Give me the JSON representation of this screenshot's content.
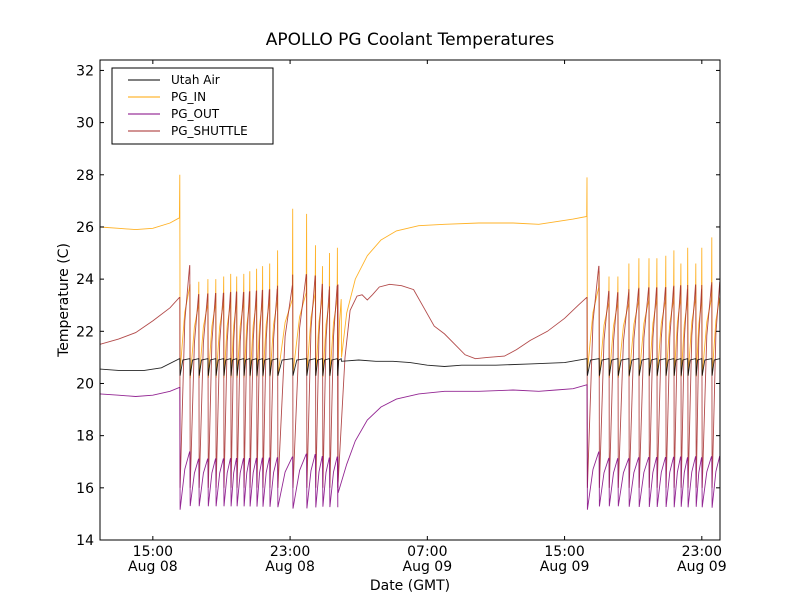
{
  "chart_data": {
    "type": "line",
    "title": "APOLLO PG Coolant Temperatures",
    "xlabel": "Date (GMT)",
    "ylabel": "Temperature (C)",
    "x_units": "hours since Aug 08 00:00 GMT",
    "xlim": [
      11.92,
      48.06
    ],
    "ylim": [
      14,
      32.4
    ],
    "grid": false,
    "legend_position": "top-left",
    "xticks": [
      {
        "value": 15,
        "line1": "15:00",
        "line2": "Aug 08"
      },
      {
        "value": 23,
        "line1": "23:00",
        "line2": "Aug 08"
      },
      {
        "value": 31,
        "line1": "07:00",
        "line2": "Aug 09"
      },
      {
        "value": 39,
        "line1": "15:00",
        "line2": "Aug 09"
      },
      {
        "value": 47,
        "line1": "23:00",
        "line2": "Aug 09"
      }
    ],
    "yticks": [
      14,
      16,
      18,
      20,
      22,
      24,
      26,
      28,
      30,
      32
    ],
    "cycles": {
      "note": "compressor cycling events (spike time in hours, PG_IN spike peak in C)",
      "region1": [
        [
          16.57,
          28.0
        ],
        [
          17.16,
          23.8
        ],
        [
          17.68,
          23.9
        ],
        [
          18.21,
          24.0
        ],
        [
          18.67,
          24.0
        ],
        [
          19.13,
          24.1
        ],
        [
          19.54,
          24.2
        ],
        [
          19.89,
          24.1
        ],
        [
          20.3,
          24.2
        ],
        [
          20.65,
          24.3
        ],
        [
          21.05,
          24.4
        ],
        [
          21.4,
          24.5
        ],
        [
          21.81,
          24.6
        ],
        [
          22.27,
          25.1
        ],
        [
          23.15,
          26.7
        ],
        [
          23.96,
          26.5
        ],
        [
          24.48,
          25.3
        ],
        [
          24.89,
          24.5
        ],
        [
          25.3,
          25.0
        ],
        [
          25.76,
          25.2
        ]
      ],
      "region2": [
        [
          40.31,
          27.9
        ],
        [
          41.01,
          24.3
        ],
        [
          41.59,
          24.1
        ],
        [
          42.11,
          24.1
        ],
        [
          42.75,
          24.6
        ],
        [
          43.33,
          24.8
        ],
        [
          43.92,
          24.8
        ],
        [
          44.38,
          24.8
        ],
        [
          44.9,
          24.9
        ],
        [
          45.37,
          25.1
        ],
        [
          45.78,
          24.6
        ],
        [
          46.18,
          25.2
        ],
        [
          46.65,
          24.6
        ],
        [
          47.0,
          25.2
        ],
        [
          47.58,
          25.6
        ]
      ]
    },
    "series": [
      {
        "name": "Utah Air",
        "color": "#000000",
        "baseline": [
          [
            11.92,
            20.55
          ],
          [
            13.0,
            20.5
          ],
          [
            14.5,
            20.5
          ],
          [
            15.5,
            20.6
          ],
          [
            16.55,
            20.95
          ]
        ],
        "cycle_low": 20.3,
        "cycle_high": 20.95,
        "between": [
          [
            26.0,
            20.85
          ],
          [
            27.0,
            20.9
          ],
          [
            28.0,
            20.85
          ],
          [
            29.0,
            20.85
          ],
          [
            30.0,
            20.8
          ],
          [
            31.0,
            20.7
          ],
          [
            32.0,
            20.65
          ],
          [
            33.0,
            20.7
          ],
          [
            35.0,
            20.7
          ],
          [
            37.0,
            20.75
          ],
          [
            39.0,
            20.8
          ],
          [
            40.29,
            20.95
          ]
        ],
        "tail": 20.9
      },
      {
        "name": "PG_IN",
        "color": "#ffa500",
        "baseline": [
          [
            11.92,
            26.0
          ],
          [
            13.0,
            25.95
          ],
          [
            14.0,
            25.9
          ],
          [
            15.0,
            25.95
          ],
          [
            16.0,
            26.15
          ],
          [
            16.55,
            26.35
          ]
        ],
        "cycle_low": 20.2,
        "cycle_high": 23.0,
        "between": [
          [
            26.0,
            21.0
          ],
          [
            26.3,
            22.7
          ],
          [
            26.8,
            24.0
          ],
          [
            27.5,
            24.9
          ],
          [
            28.3,
            25.5
          ],
          [
            29.2,
            25.85
          ],
          [
            30.5,
            26.05
          ],
          [
            32.0,
            26.1
          ],
          [
            34.0,
            26.15
          ],
          [
            36.0,
            26.15
          ],
          [
            37.5,
            26.1
          ],
          [
            38.5,
            26.2
          ],
          [
            39.5,
            26.3
          ],
          [
            40.29,
            26.4
          ]
        ],
        "tail": 22.5
      },
      {
        "name": "PG_OUT",
        "color": "#800080",
        "baseline": [
          [
            11.92,
            19.6
          ],
          [
            13.0,
            19.55
          ],
          [
            14.0,
            19.5
          ],
          [
            15.0,
            19.55
          ],
          [
            16.0,
            19.7
          ],
          [
            16.55,
            19.85
          ]
        ],
        "cycle_low": 15.3,
        "cycle_high": 17.1,
        "between": [
          [
            25.8,
            15.8
          ],
          [
            26.3,
            16.9
          ],
          [
            26.8,
            17.8
          ],
          [
            27.5,
            18.6
          ],
          [
            28.3,
            19.1
          ],
          [
            29.2,
            19.4
          ],
          [
            30.5,
            19.6
          ],
          [
            32.0,
            19.7
          ],
          [
            34.0,
            19.7
          ],
          [
            36.0,
            19.75
          ],
          [
            37.5,
            19.7
          ],
          [
            38.5,
            19.75
          ],
          [
            39.5,
            19.8
          ],
          [
            40.29,
            19.95
          ]
        ],
        "tail": 16.5
      },
      {
        "name": "PG_SHUTTLE",
        "color": "#a52a2a",
        "baseline": [
          [
            11.92,
            21.5
          ],
          [
            13.0,
            21.7
          ],
          [
            14.0,
            21.95
          ],
          [
            15.0,
            22.4
          ],
          [
            16.0,
            22.9
          ],
          [
            16.55,
            23.3
          ]
        ],
        "cycle_low": 16.0,
        "cycle_high": 23.4,
        "between": [
          [
            25.8,
            16.2
          ],
          [
            26.2,
            21.0
          ],
          [
            26.5,
            22.8
          ],
          [
            26.9,
            23.35
          ],
          [
            27.2,
            23.4
          ],
          [
            27.5,
            23.2
          ],
          [
            27.8,
            23.4
          ],
          [
            28.2,
            23.7
          ],
          [
            28.8,
            23.8
          ],
          [
            29.5,
            23.75
          ],
          [
            30.2,
            23.6
          ],
          [
            30.8,
            22.9
          ],
          [
            31.4,
            22.2
          ],
          [
            32.0,
            21.9
          ],
          [
            32.6,
            21.5
          ],
          [
            33.2,
            21.1
          ],
          [
            33.8,
            20.95
          ],
          [
            34.5,
            21.0
          ],
          [
            35.5,
            21.05
          ],
          [
            36.2,
            21.3
          ],
          [
            37.0,
            21.65
          ],
          [
            38.0,
            22.0
          ],
          [
            39.0,
            22.5
          ],
          [
            39.8,
            23.0
          ],
          [
            40.29,
            23.3
          ]
        ],
        "tail": 22.8
      }
    ]
  }
}
